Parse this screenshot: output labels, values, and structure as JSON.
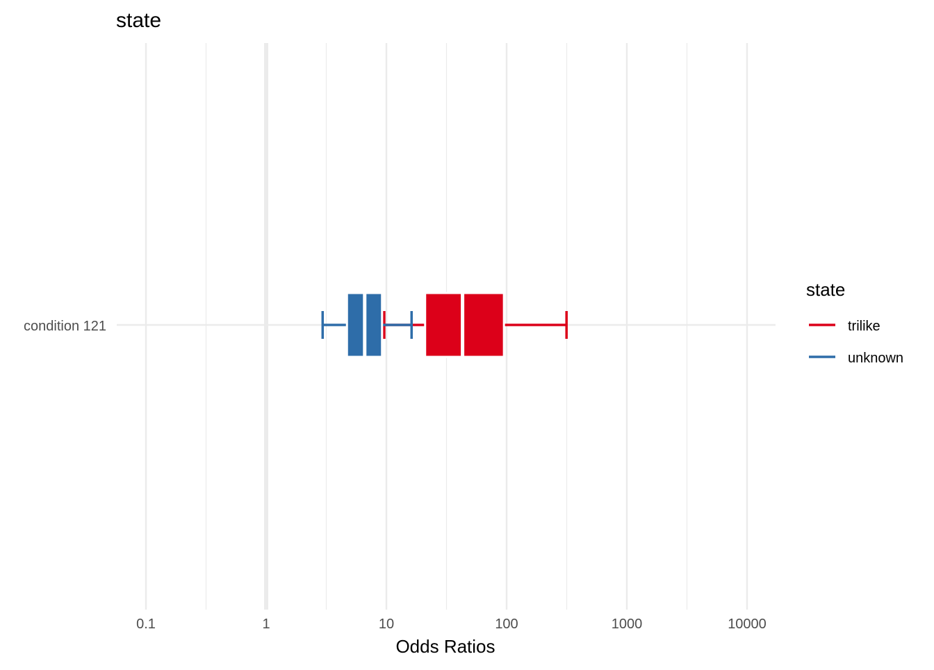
{
  "chart_data": {
    "type": "boxplot",
    "title": "state",
    "xlabel": "Odds Ratios",
    "ylabel": "",
    "x_scale": "log10",
    "xlim": [
      0.1,
      17000
    ],
    "x_ticks": [
      0.1,
      1,
      10,
      100,
      1000,
      10000
    ],
    "x_tick_labels": [
      "0.1",
      "1",
      "10",
      "100",
      "1000",
      "10000"
    ],
    "reference_line": 1,
    "grid": true,
    "categories": [
      "condition 121"
    ],
    "legend": {
      "title": "state",
      "position": "right"
    },
    "series": [
      {
        "name": "trilike",
        "color": "#DC0019",
        "category": "condition 121",
        "whisker_low": 9.6,
        "q1": 21,
        "median": 43,
        "q3": 95,
        "whisker_high": 315
      },
      {
        "name": "unknown",
        "color": "#2E6DA9",
        "category": "condition 121",
        "whisker_low": 2.95,
        "q1": 4.7,
        "median": 6.6,
        "q3": 9.2,
        "whisker_high": 16.2
      }
    ]
  }
}
